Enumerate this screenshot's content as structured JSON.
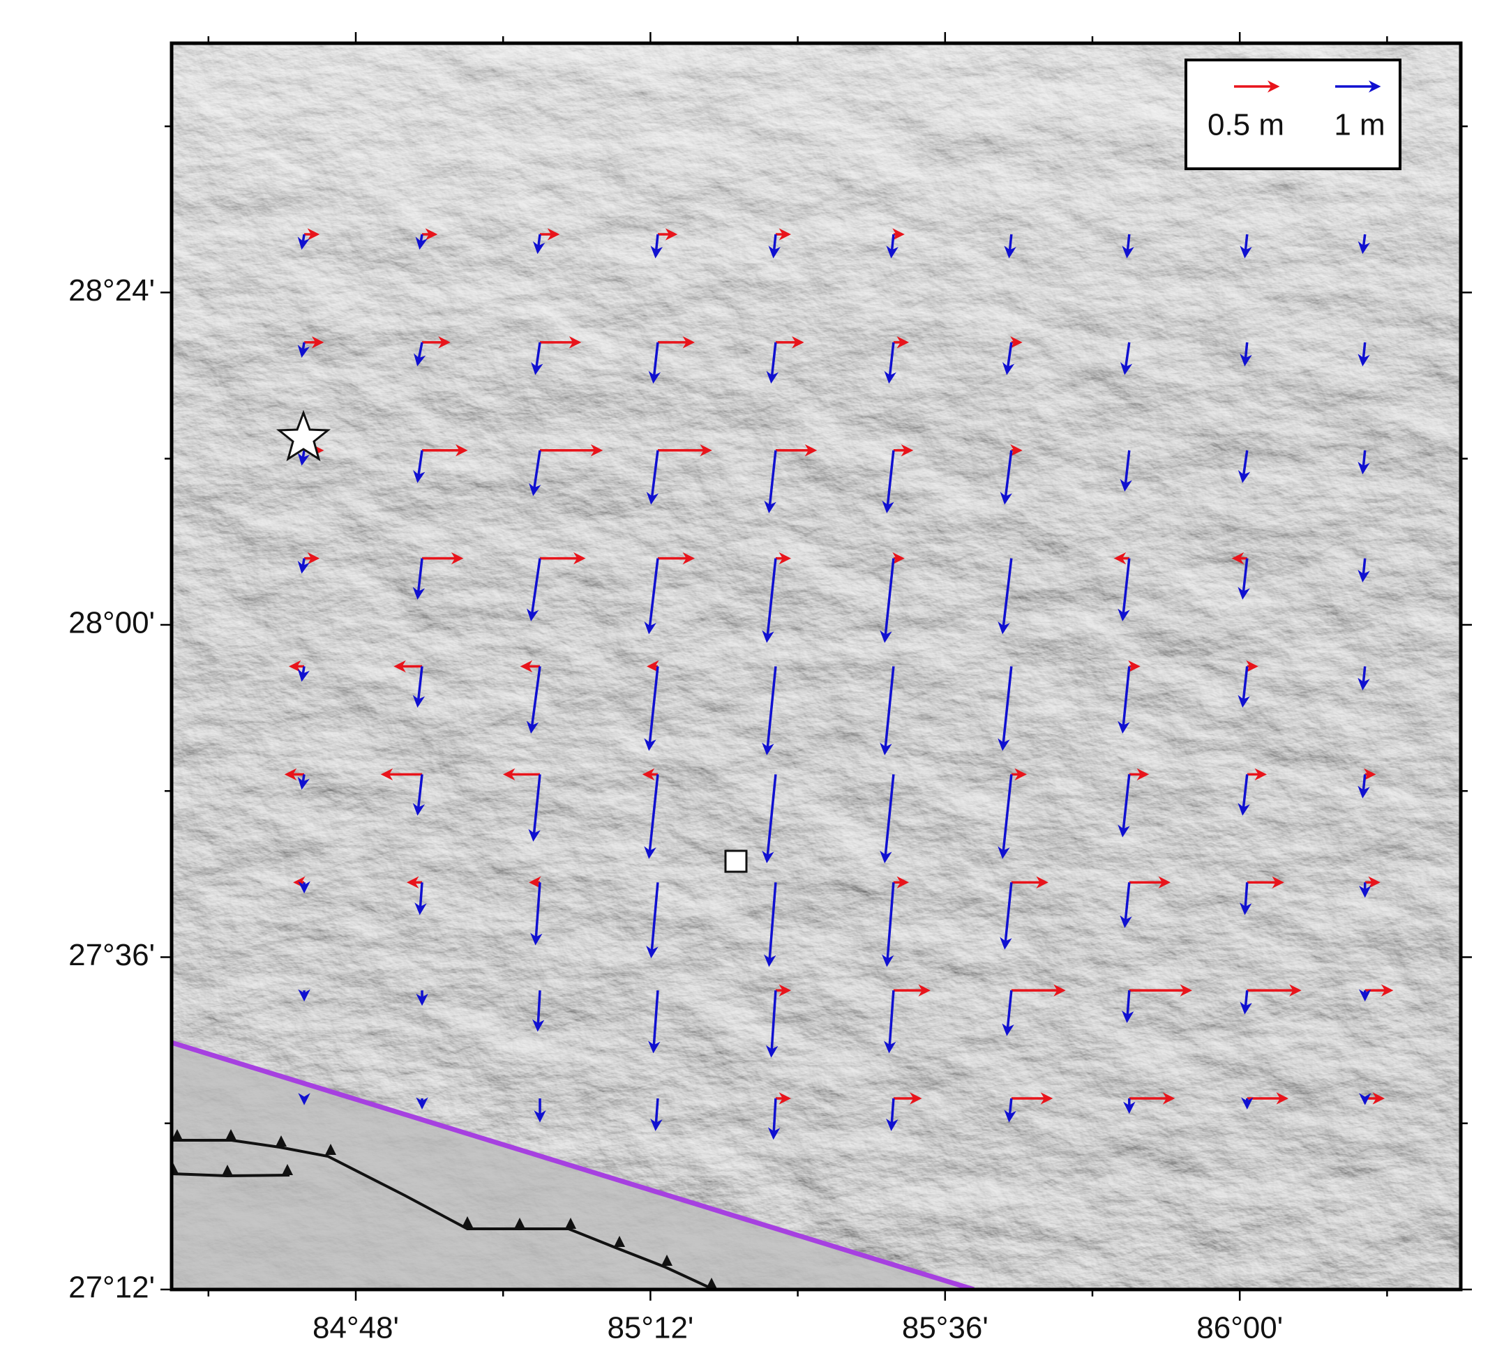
{
  "map": {
    "xlim": [
      84.55,
      86.3
    ],
    "ylim": [
      27.2,
      28.7
    ],
    "xticks": [
      {
        "value": 84.8,
        "label": "84°48'"
      },
      {
        "value": 85.2,
        "label": "85°12'"
      },
      {
        "value": 85.6,
        "label": "85°36'"
      },
      {
        "value": 86.0,
        "label": "86°00'"
      }
    ],
    "yticks": [
      {
        "value": 27.2,
        "label": "27°12'"
      },
      {
        "value": 27.6,
        "label": "27°36'"
      },
      {
        "value": 28.0,
        "label": "28°00'"
      },
      {
        "value": 28.4,
        "label": "28°24'"
      }
    ],
    "xminor": [
      84.6,
      85.0,
      85.4,
      85.8,
      86.2
    ],
    "yminor": [
      27.4,
      27.8,
      28.2,
      28.6
    ],
    "legend": [
      {
        "label": "0.5 m",
        "value": 0.5,
        "color": "#e8141b"
      },
      {
        "label": "1 m",
        "value": 1,
        "color": "#1010d0"
      }
    ],
    "lons": [
      84.73,
      84.89,
      85.05,
      85.21,
      85.37,
      85.53,
      85.69,
      85.85,
      86.01,
      86.17
    ],
    "lats": [
      28.47,
      28.34,
      28.21,
      28.08,
      27.95,
      27.82,
      27.69,
      27.56,
      27.43
    ],
    "blue_north": [
      [
        -0.3,
        -0.3,
        -0.4,
        -0.5,
        -0.5,
        -0.5,
        -0.5,
        -0.5,
        -0.5,
        -0.4
      ],
      [
        -0.3,
        -0.5,
        -0.7,
        -0.9,
        -0.9,
        -0.9,
        -0.7,
        -0.7,
        -0.5,
        -0.5
      ],
      [
        -0.3,
        -0.7,
        -1.0,
        -1.2,
        -1.4,
        -1.4,
        -1.2,
        -0.9,
        -0.7,
        -0.5
      ],
      [
        -0.3,
        -0.9,
        -1.4,
        -1.7,
        -1.9,
        -1.9,
        -1.7,
        -1.4,
        -0.9,
        -0.5
      ],
      [
        -0.3,
        -0.9,
        -1.5,
        -1.9,
        -2.0,
        -2.0,
        -1.9,
        -1.5,
        -0.9,
        -0.5
      ],
      [
        -0.3,
        -0.9,
        -1.5,
        -1.9,
        -2.0,
        -2.0,
        -1.9,
        -1.4,
        -0.9,
        -0.5
      ],
      [
        -0.2,
        -0.7,
        -1.4,
        -1.7,
        -1.9,
        -1.9,
        -1.5,
        -1.0,
        -0.7,
        -0.3
      ],
      [
        -0.2,
        -0.3,
        -0.9,
        -1.4,
        -1.5,
        -1.4,
        -1.0,
        -0.7,
        -0.5,
        -0.2
      ],
      [
        -0.1,
        -0.2,
        -0.5,
        -0.7,
        -0.9,
        -0.7,
        -0.5,
        -0.3,
        -0.2,
        -0.1
      ]
    ],
    "blue_east": [
      [
        -0.05,
        -0.05,
        -0.05,
        -0.05,
        -0.05,
        -0.05,
        -0.05,
        -0.05,
        -0.05,
        -0.05
      ],
      [
        -0.05,
        -0.1,
        -0.1,
        -0.1,
        -0.1,
        -0.1,
        -0.1,
        -0.1,
        -0.05,
        -0.05
      ],
      [
        -0.05,
        -0.1,
        -0.15,
        -0.15,
        -0.15,
        -0.15,
        -0.15,
        -0.1,
        -0.1,
        -0.05
      ],
      [
        -0.05,
        -0.1,
        -0.2,
        -0.2,
        -0.2,
        -0.2,
        -0.2,
        -0.15,
        -0.1,
        -0.05
      ],
      [
        -0.05,
        -0.1,
        -0.2,
        -0.2,
        -0.2,
        -0.2,
        -0.2,
        -0.15,
        -0.1,
        -0.05
      ],
      [
        -0.05,
        -0.1,
        -0.15,
        -0.2,
        -0.2,
        -0.2,
        -0.2,
        -0.15,
        -0.1,
        -0.05
      ],
      [
        0,
        -0.05,
        -0.1,
        -0.15,
        -0.15,
        -0.15,
        -0.15,
        -0.1,
        -0.05,
        0
      ],
      [
        0,
        0,
        -0.05,
        -0.1,
        -0.1,
        -0.1,
        -0.1,
        -0.05,
        -0.05,
        0
      ],
      [
        0,
        0,
        0,
        -0.05,
        -0.05,
        -0.05,
        -0.05,
        0,
        0,
        0
      ]
    ],
    "red_east": [
      [
        0.15,
        0.15,
        0.2,
        0.2,
        0.15,
        0.1,
        0,
        0,
        0,
        0
      ],
      [
        0.2,
        0.3,
        0.45,
        0.4,
        0.3,
        0.15,
        0.1,
        0,
        0,
        0
      ],
      [
        0.2,
        0.5,
        0.7,
        0.6,
        0.45,
        0.2,
        0.1,
        0,
        0,
        0
      ],
      [
        0.15,
        0.45,
        0.5,
        0.4,
        0.15,
        0.1,
        0,
        -0.15,
        -0.15,
        0
      ],
      [
        -0.15,
        -0.3,
        -0.2,
        -0.1,
        0,
        0,
        0,
        0.1,
        0.1,
        0
      ],
      [
        -0.2,
        -0.45,
        -0.4,
        -0.15,
        0,
        0,
        0.15,
        0.2,
        0.2,
        0.1
      ],
      [
        -0.1,
        -0.15,
        -0.1,
        0,
        0,
        0.15,
        0.4,
        0.45,
        0.4,
        0.15
      ],
      [
        0,
        0,
        0,
        0,
        0.15,
        0.4,
        0.6,
        0.7,
        0.6,
        0.3
      ],
      [
        0,
        0,
        0,
        0,
        0.15,
        0.3,
        0.45,
        0.5,
        0.45,
        0.2
      ]
    ]
  }
}
